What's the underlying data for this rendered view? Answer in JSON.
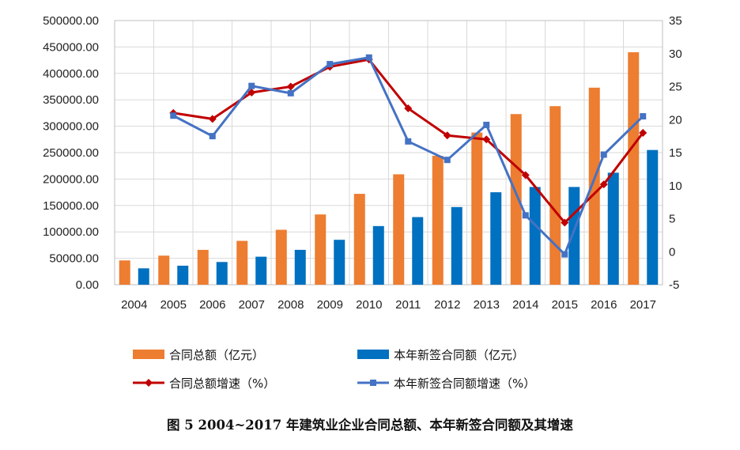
{
  "caption": "图 5   2004~2017 年建筑业企业合同总额、本年新签合同额及其增速",
  "chart_data": {
    "type": "bar",
    "title": "",
    "categories": [
      "2004",
      "2005",
      "2006",
      "2007",
      "2008",
      "2009",
      "2010",
      "2011",
      "2012",
      "2013",
      "2014",
      "2015",
      "2016",
      "2017"
    ],
    "left_axis": {
      "ylim": [
        0,
        500000
      ],
      "ticks": [
        "0.00",
        "50000.00",
        "100000.00",
        "150000.00",
        "200000.00",
        "250000.00",
        "300000.00",
        "350000.00",
        "400000.00",
        "450000.00",
        "500000.00"
      ]
    },
    "right_axis": {
      "ylim": [
        -5,
        35
      ],
      "ticks": [
        "-5",
        "0",
        "5",
        "10",
        "15",
        "20",
        "25",
        "30",
        "35"
      ]
    },
    "grid": true,
    "legend_position": "bottom",
    "series": [
      {
        "name": "合同总额（亿元）",
        "kind": "bar",
        "axis": "left",
        "color": "#ED7D31",
        "values": [
          46000,
          55000,
          66000,
          83000,
          104000,
          133000,
          172000,
          209000,
          244000,
          288000,
          323000,
          338000,
          373000,
          440000
        ]
      },
      {
        "name": "本年新签合同额（亿元）",
        "kind": "bar",
        "axis": "left",
        "color": "#0070C0",
        "values": [
          31000,
          36000,
          43000,
          53000,
          66000,
          85000,
          111000,
          128000,
          147000,
          175000,
          185000,
          185000,
          212000,
          255000
        ]
      },
      {
        "name": "合同总额增速（%）",
        "kind": "line",
        "axis": "right",
        "marker": "diamond",
        "color": "#C00000",
        "values": [
          null,
          21.0,
          20.1,
          24.1,
          25.0,
          28.0,
          29.1,
          21.7,
          17.6,
          17.0,
          11.6,
          4.4,
          10.2,
          18.0
        ]
      },
      {
        "name": "本年新签合同额增速（%）",
        "kind": "line",
        "axis": "right",
        "marker": "square",
        "color": "#4472C4",
        "values": [
          null,
          20.6,
          17.5,
          25.1,
          24.0,
          28.4,
          29.4,
          16.7,
          13.9,
          19.2,
          5.5,
          -0.4,
          14.7,
          20.5
        ]
      }
    ]
  }
}
